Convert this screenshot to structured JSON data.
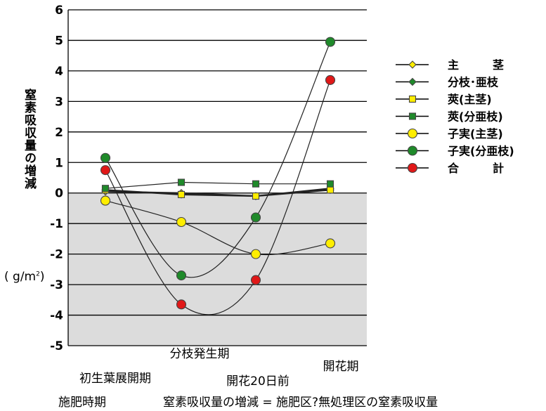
{
  "chart_data": {
    "type": "line",
    "title": "",
    "ylabel": "窒素吸収量の増減",
    "yunit_prefix": "( g/m",
    "yunit_sup": "2",
    "yunit_suffix": ")",
    "ylim": [
      -5,
      6
    ],
    "yticks": [
      6,
      5,
      4,
      3,
      2,
      1,
      0,
      -1,
      -2,
      -3,
      -4,
      -5
    ],
    "categories": [
      "初生葉展開期",
      "分枝発生期",
      "開花20日前",
      "開花期"
    ],
    "negative_region_shaded": true,
    "grid": "horizontal",
    "legend_position": "right",
    "series": [
      {
        "name": "主　　　茎",
        "marker": "diamond",
        "color": "#ffee00",
        "values": [
          0.05,
          0.0,
          -0.1,
          0.1
        ]
      },
      {
        "name": "分枝･亜枝",
        "marker": "diamond",
        "color": "#1f8a2a",
        "values": [
          0.1,
          -0.05,
          -0.1,
          0.15
        ]
      },
      {
        "name": "莢(主茎)",
        "marker": "square",
        "color": "#ffee00",
        "values": [
          0.1,
          -0.05,
          -0.1,
          0.1
        ]
      },
      {
        "name": "莢(分亜枝)",
        "marker": "square",
        "color": "#1f8a2a",
        "values": [
          0.15,
          0.35,
          0.3,
          0.3
        ]
      },
      {
        "name": "子実(主茎)",
        "marker": "circle",
        "color": "#ffee00",
        "values": [
          -0.25,
          -0.95,
          -2.0,
          -1.65
        ]
      },
      {
        "name": "子実(分亜枝)",
        "marker": "circle",
        "color": "#1f8a2a",
        "values": [
          1.15,
          -2.7,
          -0.8,
          4.95
        ]
      },
      {
        "name": "合　　　計",
        "marker": "circle",
        "color": "#e01818",
        "values": [
          0.75,
          -3.65,
          -2.85,
          3.7
        ]
      }
    ]
  },
  "footer": {
    "left": "施肥時期",
    "right": "窒素吸収量の増減 = 施肥区?無処理区の窒素吸収量"
  }
}
